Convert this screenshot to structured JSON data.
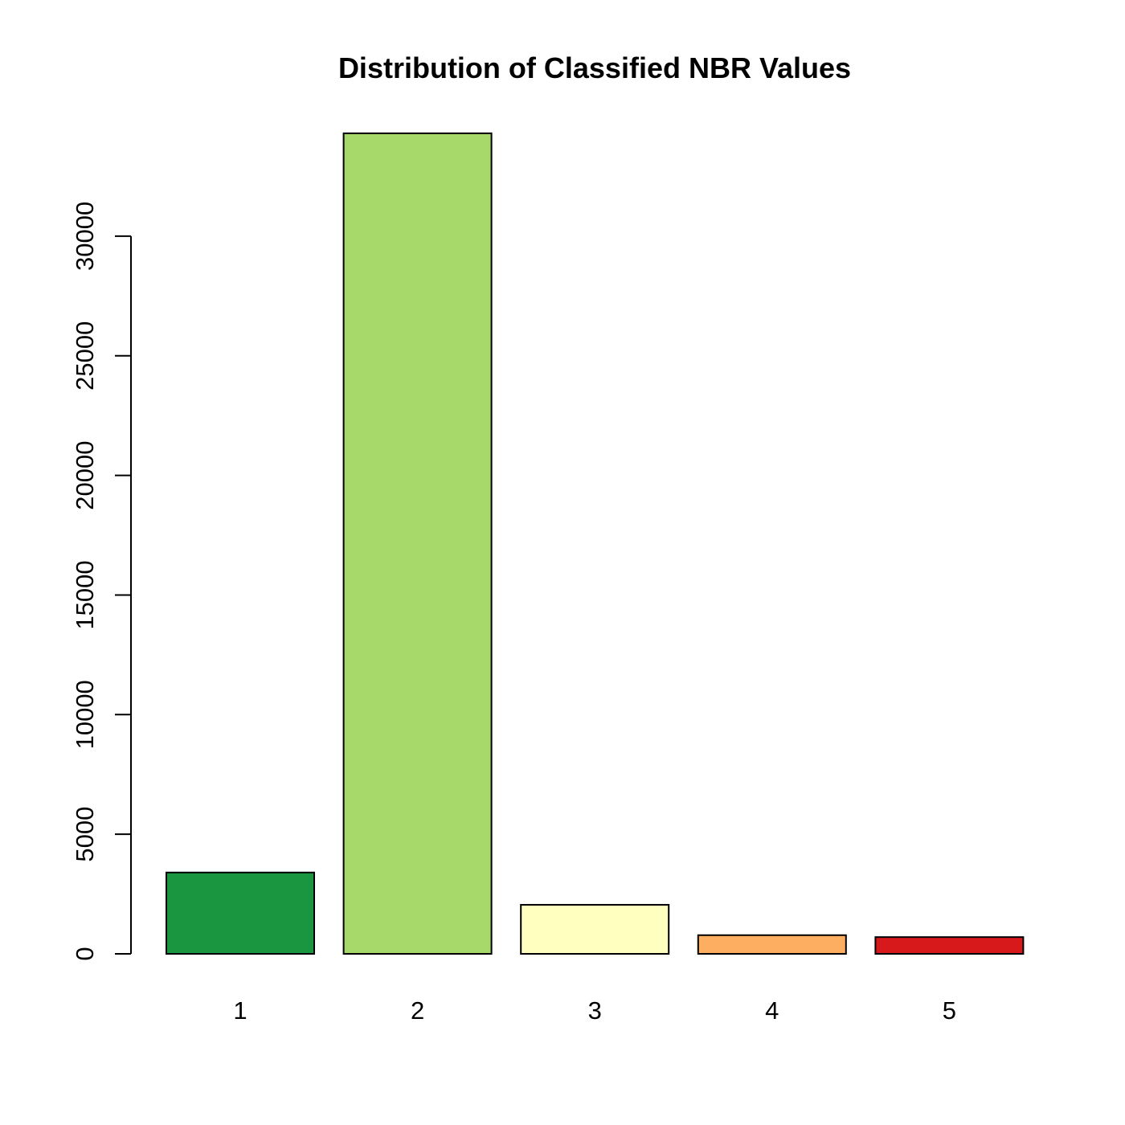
{
  "chart_data": {
    "type": "bar",
    "title": "Distribution of Classified NBR Values",
    "xlabel": "",
    "ylabel": "",
    "categories": [
      "1",
      "2",
      "3",
      "4",
      "5"
    ],
    "values": [
      3400,
      34300,
      2050,
      780,
      700
    ],
    "colors": [
      "#1a9641",
      "#a6d96a",
      "#ffffbf",
      "#fdae61",
      "#d7191c"
    ],
    "ylim": [
      0,
      34300
    ],
    "y_ticks": [
      0,
      5000,
      10000,
      15000,
      20000,
      25000,
      30000
    ],
    "y_tick_labels": [
      "0",
      "5000",
      "10000",
      "15000",
      "20000",
      "25000",
      "30000"
    ],
    "grid": false,
    "legend": "none"
  }
}
